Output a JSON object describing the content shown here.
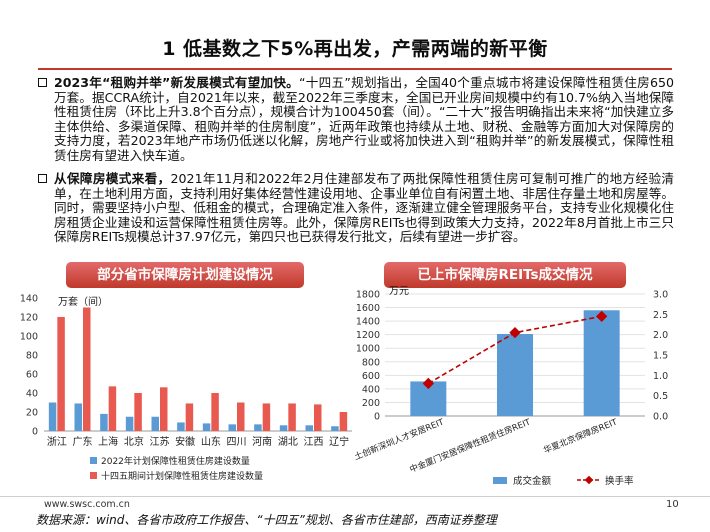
{
  "title": "1 低基数之下5%再出发，产需两端的新平衡",
  "para1": {
    "lead": "2023年“租购并举”新发展模式有望加快。",
    "text": "“十四五”规划指出，全国40个重点城市将建设保障性租赁住房650万套。据CCRA统计，自2021年以来，截至2022年三季度末，全国已开业房间规模中约有10.7%纳入当地保障性租赁住房（环比上升3.8个百分点），规模合计为100450套（间）。“二十大”报告明确指出未来将“加快建立多主体供给、多渠道保障、租购并举的住房制度”，近两年政策也持续从土地、财税、金融等方面加大对保障房的支持力度，若2023年地产市场仍低迷以化解，房地产行业或将加快进入到“租购并举”的新发展模式，保障性租赁住房有望进入快车道。"
  },
  "para2": {
    "lead": "从保障房模式来看，",
    "text": "2021年11月和2022年2月住建部发布了两批保障性租赁住房可复制可推广的地方经验清单，在土地利用方面，支持利用好集体经营性建设用地、企事业单位自有闲置土地、非居住存量土地和房屋等。同时，需要坚持小户型、低租金的模式，合理确定准入条件，逐渐建立健全管理服务平台，支持专业化规模化住房租赁企业建设和运营保障性租赁住房等。此外，保障房REITs也得到政策大力支持，2022年8月首批上市三只保障房REITs规模总计37.97亿元，第四只也已获得发行批文，后续有望进一步扩容。"
  },
  "banner_left": "部分省市保障房计划建设情况",
  "banner_right": "已上市保障房REITs成交情况",
  "chart_data": [
    {
      "type": "bar",
      "unit_label": "万套（间）",
      "categories": [
        "浙江",
        "广东",
        "上海",
        "北京",
        "江苏",
        "安徽",
        "山东",
        "四川",
        "河南",
        "湖北",
        "江西",
        "辽宁"
      ],
      "series": [
        {
          "name": "2022年计划保障性租赁住房建设数量",
          "color": "#5b9bd5",
          "values": [
            30,
            29,
            18,
            15,
            15,
            9,
            8,
            7,
            7,
            6,
            6,
            5
          ]
        },
        {
          "name": "十四五期间计划保障性租赁住房建设数量",
          "color": "#e85a4f",
          "values": [
            120,
            130,
            47,
            40,
            46,
            29,
            40,
            30,
            29,
            29,
            28,
            20
          ]
        }
      ],
      "ylim": [
        0,
        140
      ],
      "yticks": [
        0,
        20,
        40,
        60,
        80,
        100,
        120,
        140
      ]
    },
    {
      "type": "bar+line",
      "unit_label": "万元",
      "categories": [
        "红土创新深圳人才安居REIT",
        "中金厦门安居保障性租赁住房REIT",
        "华夏北京保障房REIT"
      ],
      "bars": {
        "name": "成交金额",
        "color": "#5b9bd5",
        "values": [
          510,
          1210,
          1560
        ]
      },
      "line": {
        "name": "换手率",
        "color": "#c00000",
        "values": [
          0.8,
          2.05,
          2.45
        ]
      },
      "ylim_left": [
        0,
        1800
      ],
      "yticks_left": [
        0,
        200,
        400,
        600,
        800,
        1000,
        1200,
        1400,
        1600,
        1800
      ],
      "ylim_right": [
        0,
        3.0
      ],
      "yticks_right": [
        "0.0",
        "0.5",
        "1.0",
        "1.5",
        "2.0",
        "2.5",
        "3.0"
      ]
    }
  ],
  "footer": {
    "site": "www.swsc.com.cn",
    "page": "10",
    "source": "数据来源：wind、各省市政府工作报告、“十四五”规划、各省市住建部，西南证券整理"
  }
}
